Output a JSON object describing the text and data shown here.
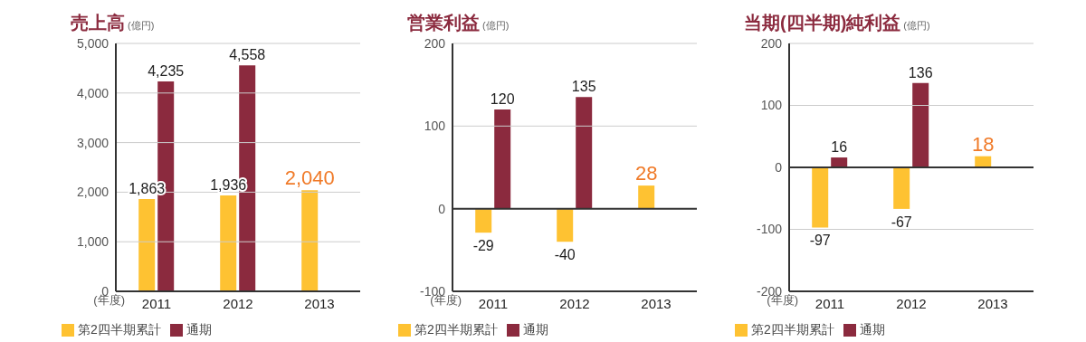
{
  "chart_data": [
    {
      "type": "bar",
      "title": "売上高",
      "ylabel": "(億円)",
      "xlabel": "(年度)",
      "categories": [
        "2011",
        "2012",
        "2013"
      ],
      "series": [
        {
          "name": "第2四半期累計",
          "color": "#fec232",
          "values": [
            1863,
            1936,
            2040
          ],
          "value_labels": [
            "1,863",
            "1,936",
            "2,040"
          ]
        },
        {
          "name": "通期",
          "color": "#8b2a3e",
          "values": [
            4235,
            4558,
            null
          ],
          "value_labels": [
            "4,235",
            "4,558",
            null
          ]
        }
      ],
      "ylim": [
        0,
        5000
      ],
      "yticks": [
        0,
        {
          "value": 1000,
          "label": "1,000"
        },
        {
          "value": 2000,
          "label": "2,000"
        },
        {
          "value": 3000,
          "label": "3,000"
        },
        {
          "value": 4000,
          "label": "4,000"
        },
        {
          "value": 5000,
          "label": "5,000"
        }
      ],
      "grid": "y",
      "legend": "bottom"
    },
    {
      "type": "bar",
      "title": "営業利益",
      "ylabel": "(億円)",
      "xlabel": "(年度)",
      "categories": [
        "2011",
        "2012",
        "2013"
      ],
      "series": [
        {
          "name": "第2四半期累計",
          "color": "#fec232",
          "values": [
            -29,
            -40,
            28
          ],
          "value_labels": [
            "-29",
            "-40",
            "28"
          ]
        },
        {
          "name": "通期",
          "color": "#8b2a3e",
          "values": [
            120,
            135,
            null
          ],
          "value_labels": [
            "120",
            "135",
            null
          ]
        }
      ],
      "ylim": [
        -100,
        200
      ],
      "yticks": [
        -100,
        0,
        100,
        200
      ],
      "grid": "y",
      "legend": "bottom",
      "ref_lines": [
        {
          "axis": "y",
          "value": 0
        }
      ]
    },
    {
      "type": "bar",
      "title": "当期(四半期)純利益",
      "ylabel": "(億円)",
      "xlabel": "(年度)",
      "categories": [
        "2011",
        "2012",
        "2013"
      ],
      "series": [
        {
          "name": "第2四半期累計",
          "color": "#fec232",
          "values": [
            -97,
            -67,
            18
          ],
          "value_labels": [
            "-97",
            "-67",
            "18"
          ]
        },
        {
          "name": "通期",
          "color": "#8b2a3e",
          "values": [
            16,
            136,
            null
          ],
          "value_labels": [
            "16",
            "136",
            null
          ]
        }
      ],
      "ylim": [
        -200,
        200
      ],
      "yticks": [
        -200,
        -100,
        0,
        100,
        200
      ],
      "grid": "y",
      "legend": "bottom",
      "ref_lines": [
        {
          "axis": "y",
          "value": 0
        }
      ]
    }
  ]
}
